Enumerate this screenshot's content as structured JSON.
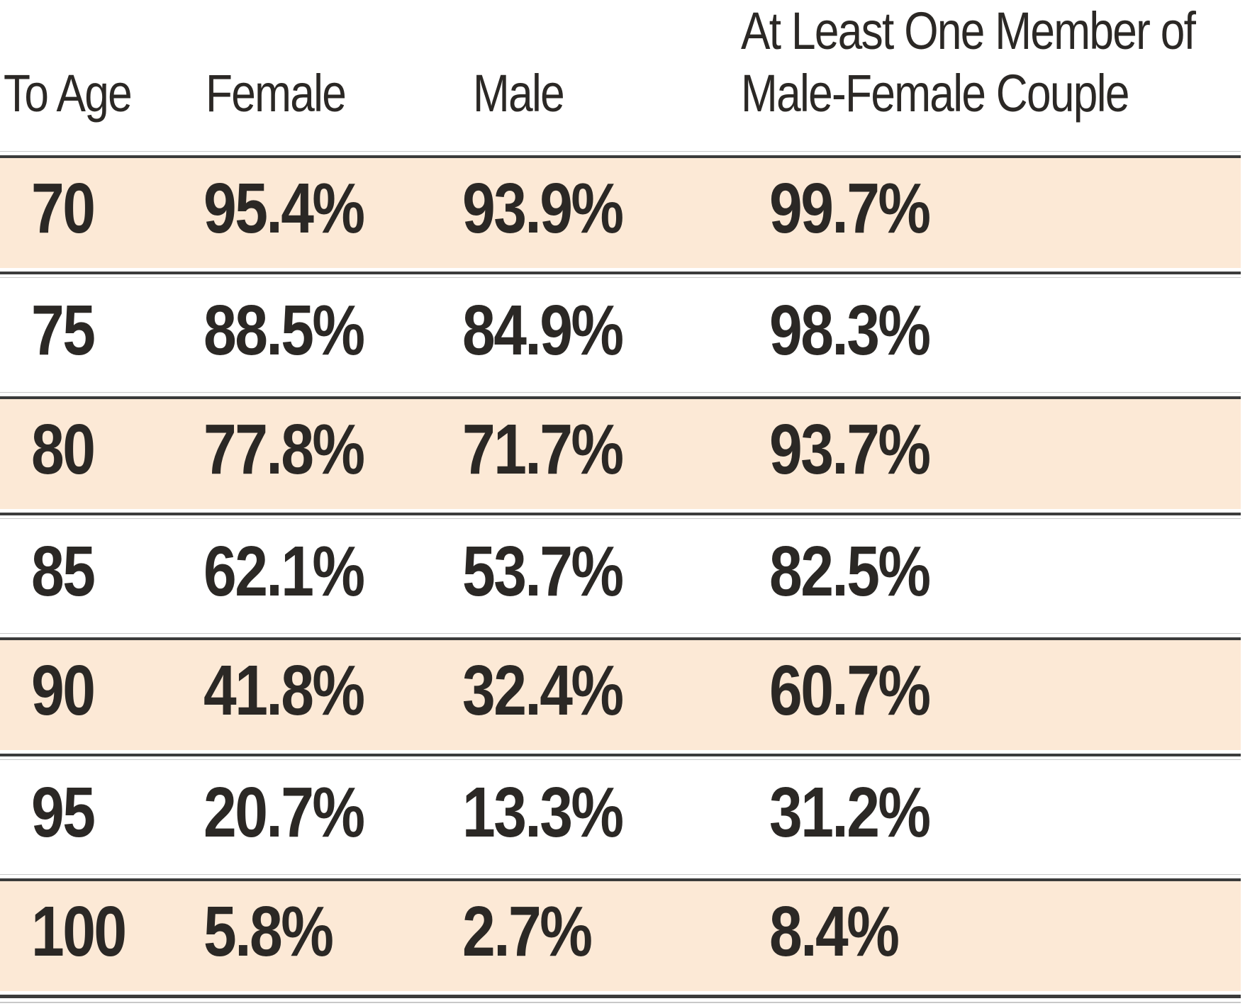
{
  "table": {
    "header": {
      "to_age": "To Age",
      "female": "Female",
      "male": "Male",
      "couple_line1": "At Least One Member of",
      "couple_line2": "Male-Female Couple"
    },
    "rows": [
      {
        "to_age": "70",
        "female": "95.4%",
        "male": "93.9%",
        "couple": "99.7%",
        "shaded": true
      },
      {
        "to_age": "75",
        "female": "88.5%",
        "male": "84.9%",
        "couple": "98.3%",
        "shaded": false
      },
      {
        "to_age": "80",
        "female": "77.8%",
        "male": "71.7%",
        "couple": "93.7%",
        "shaded": true
      },
      {
        "to_age": "85",
        "female": "62.1%",
        "male": "53.7%",
        "couple": "82.5%",
        "shaded": false
      },
      {
        "to_age": "90",
        "female": "41.8%",
        "male": "32.4%",
        "couple": "60.7%",
        "shaded": true
      },
      {
        "to_age": "95",
        "female": "20.7%",
        "male": "13.3%",
        "couple": "31.2%",
        "shaded": false
      },
      {
        "to_age": "100",
        "female": "5.8%",
        "male": "2.7%",
        "couple": "8.4%",
        "shaded": true
      }
    ],
    "colors": {
      "shaded_row_bg": "#fce9d6",
      "rule_dark": "#3b3b3b",
      "rule_light": "#c9c9c9",
      "text": "#2b2825"
    }
  }
}
